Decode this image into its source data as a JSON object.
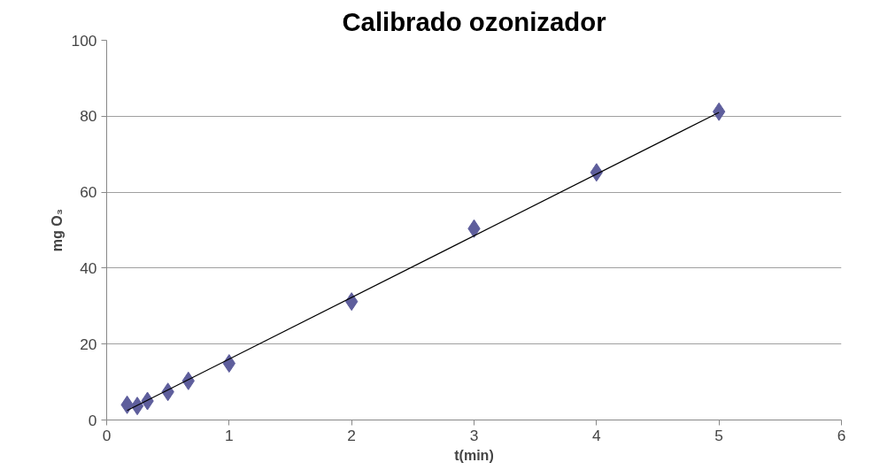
{
  "chart_data": {
    "type": "scatter",
    "title": "Calibrado ozonizador",
    "xlabel": "t(min)",
    "ylabel": "mg O₃",
    "x": [
      0.167,
      0.25,
      0.333,
      0.5,
      0.667,
      1,
      2,
      3,
      4,
      5
    ],
    "series": [
      {
        "color": "#5e5e9c",
        "marker": "diamond",
        "values": [
          4,
          3.7,
          5,
          7.4,
          10.3,
          14.9,
          31.2,
          50.4,
          65.2,
          81.2
        ]
      },
      {
        "type": "line",
        "color": "#000000",
        "marker": "none",
        "x": [
          0.167,
          5
        ],
        "values": [
          2.5,
          81
        ]
      }
    ],
    "xlim": [
      0,
      6
    ],
    "xticks": [
      0,
      1,
      2,
      3,
      4,
      5,
      6
    ],
    "ylim": [
      0,
      100
    ],
    "yticks": [
      0,
      20,
      40,
      60,
      80,
      100
    ],
    "grid": "y"
  }
}
